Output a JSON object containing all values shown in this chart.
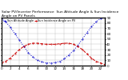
{
  "title": "Solar PV/Inverter Performance  Sun Altitude Angle & Sun Incidence Angle on PV Panels",
  "blue_label": "Sun Altitude Angle",
  "red_label": "Sun Incidence Angle on PV",
  "x": [
    0,
    1,
    2,
    3,
    4,
    5,
    6,
    7,
    8,
    9,
    10,
    11,
    12,
    13,
    14,
    15,
    16,
    17,
    18,
    19,
    20,
    21,
    22,
    23
  ],
  "blue_y": [
    88,
    82,
    72,
    60,
    48,
    36,
    24,
    16,
    10,
    7,
    5,
    5,
    6,
    8,
    13,
    20,
    28,
    38,
    50,
    62,
    73,
    82,
    88,
    90
  ],
  "red_y": [
    5,
    8,
    14,
    22,
    30,
    36,
    40,
    42,
    42,
    41,
    40,
    40,
    40,
    41,
    42,
    42,
    40,
    36,
    30,
    22,
    14,
    8,
    5,
    2
  ],
  "blue_color": "#0000CC",
  "red_color": "#CC0000",
  "bg_color": "#ffffff",
  "grid_color": "#b0b0b0",
  "ylim": [
    0,
    90
  ],
  "yticks": [
    0,
    10,
    20,
    30,
    40,
    50,
    60,
    70,
    80,
    90
  ],
  "xticks": [
    0,
    2,
    4,
    6,
    8,
    10,
    12,
    14,
    16,
    18,
    20,
    22
  ],
  "title_fontsize": 3.2,
  "tick_fontsize": 3.0,
  "legend_fontsize": 2.5
}
